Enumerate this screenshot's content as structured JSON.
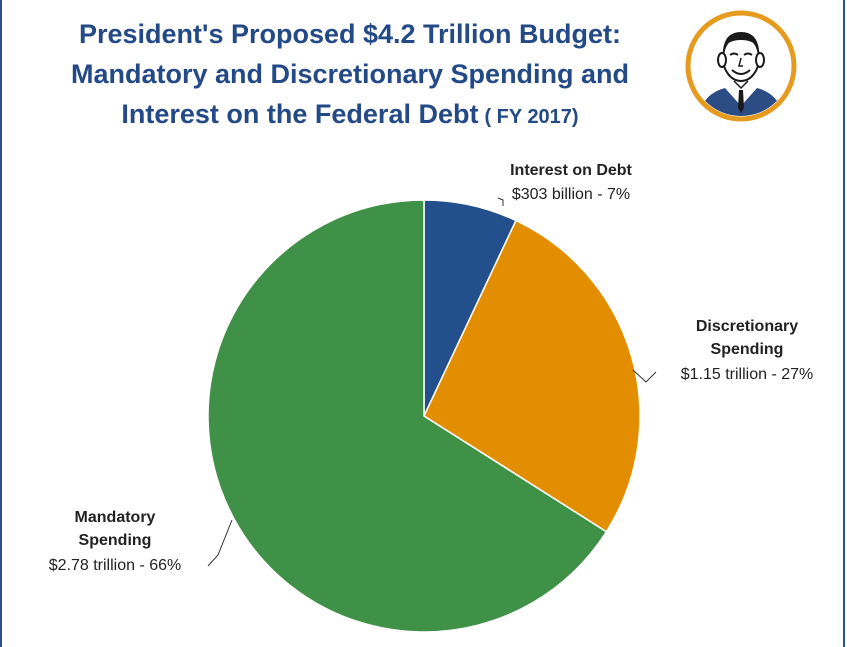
{
  "title": {
    "line1": "President's Proposed $4.2 Trillion Budget:",
    "line2": "Mandatory and Discretionary Spending and",
    "line3": "Interest on the Federal Debt",
    "suffix": "( FY 2017)"
  },
  "chart_data": {
    "type": "pie",
    "title": "President's Proposed $4.2 Trillion Budget: Mandatory and Discretionary Spending and Interest on the Federal Debt ( FY 2017)",
    "start_angle_deg": 0,
    "direction": "clockwise",
    "slices": [
      {
        "name_lines": [
          "Interest on Debt"
        ],
        "value_label": "$303 billion - 7%",
        "percent": 7,
        "color": "#234f8c"
      },
      {
        "name_lines": [
          "Discretionary",
          "Spending"
        ],
        "value_label": "$1.15 trillion - 27%",
        "percent": 27,
        "color": "#e38e00"
      },
      {
        "name_lines": [
          "Mandatory",
          "Spending"
        ],
        "value_label": "$2.78 trillion - 66%",
        "percent": 66,
        "color": "#3f9147"
      }
    ]
  },
  "colors": {
    "title": "#234a86",
    "frame": "#2d4f86",
    "portrait_ring": "#e69b1f",
    "portrait_fill": "#2b4d83"
  },
  "portrait": {
    "icon": "president-portrait-icon"
  }
}
